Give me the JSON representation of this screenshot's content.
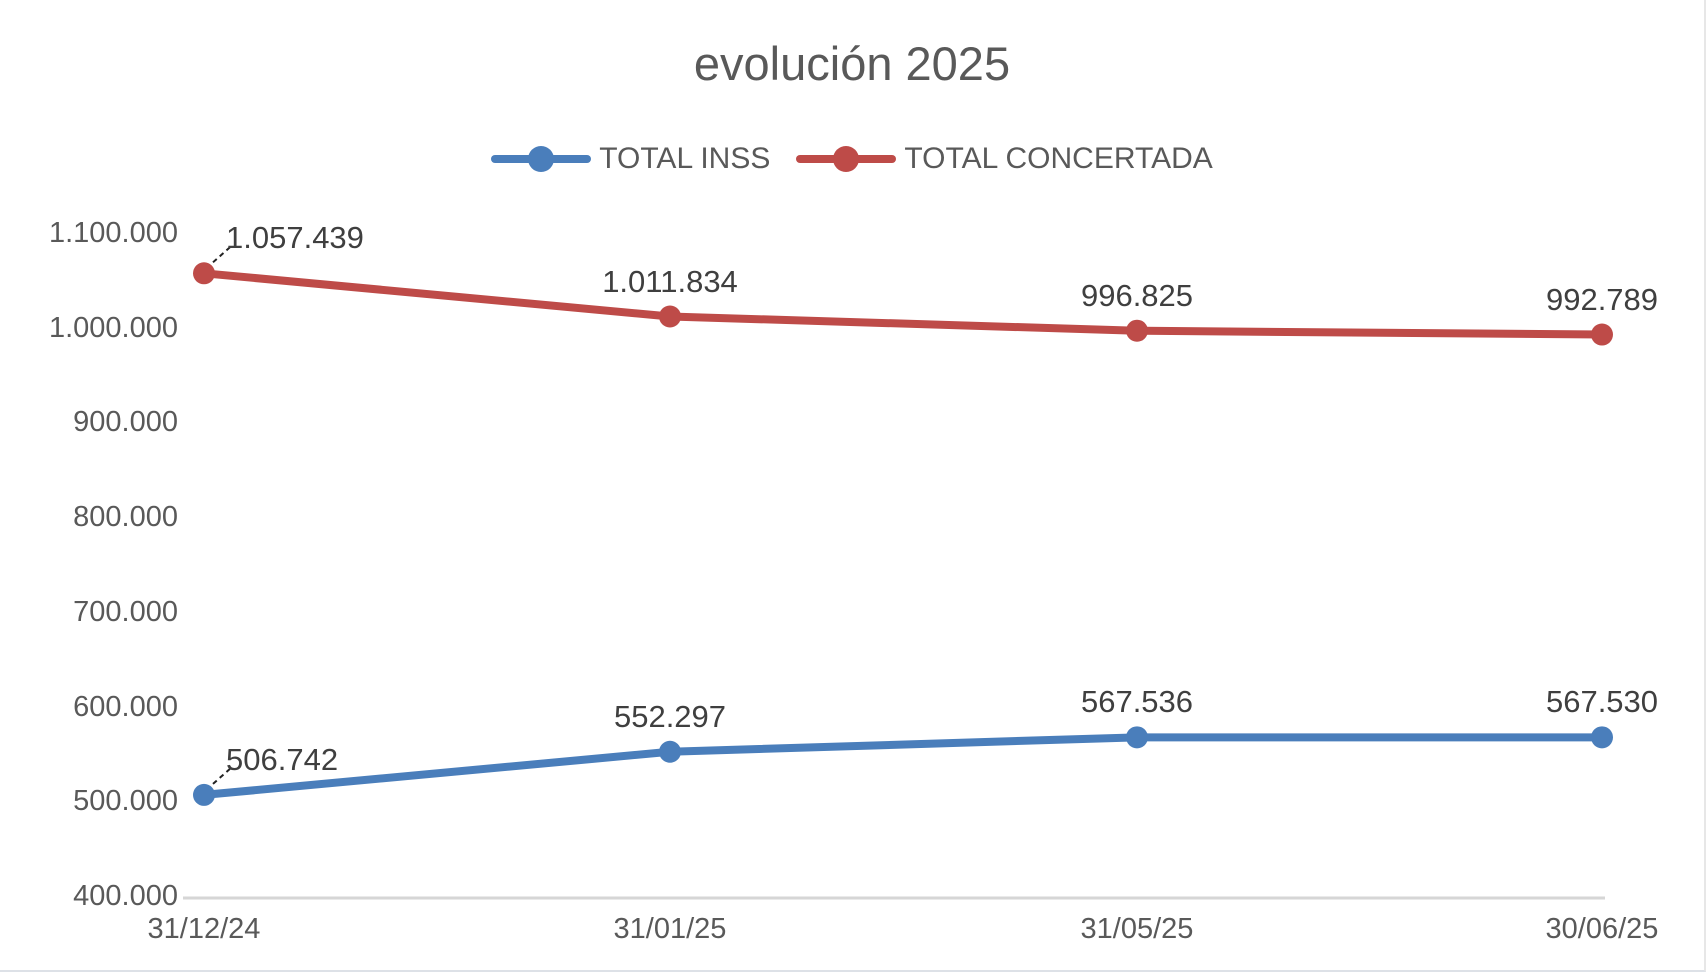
{
  "chart_data": {
    "type": "line",
    "title": "evolución 2025",
    "categories": [
      "31/12/24",
      "31/01/25",
      "31/05/25",
      "30/06/25"
    ],
    "series": [
      {
        "name": "TOTAL INSS",
        "color": "#4a7ebb",
        "values": [
          506742,
          552297,
          567536,
          567530
        ],
        "labels": [
          "506.742",
          "552.297",
          "567.536",
          "567.530"
        ]
      },
      {
        "name": "TOTAL CONCERTADA",
        "color": "#be4b48",
        "values": [
          1057439,
          1011834,
          996825,
          992789
        ],
        "labels": [
          "1.057.439",
          "1.011.834",
          "996.825",
          "992.789"
        ]
      }
    ],
    "y_axis": {
      "min": 400000,
      "max": 1100000,
      "step": 100000,
      "tick_labels": [
        "400.000",
        "500.000",
        "600.000",
        "700.000",
        "800.000",
        "900.000",
        "1.000.000",
        "1.100.000"
      ]
    },
    "x_axis": {
      "tick_labels": [
        "31/12/24",
        "31/01/25",
        "31/05/25",
        "30/06/25"
      ]
    },
    "legend_position": "top",
    "grid": false,
    "data_labels_shown": true,
    "axis_line_color": "#d6d6d6",
    "text_color": "#595959"
  }
}
